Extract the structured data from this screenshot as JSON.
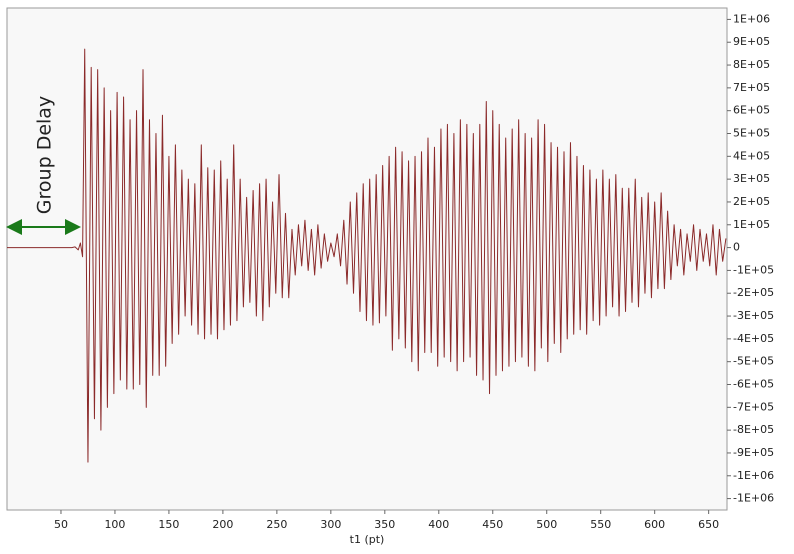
{
  "chart_data": {
    "type": "line",
    "x_label": "t1 (pt)",
    "annotation": "Group Delay",
    "xlim": [
      0,
      667
    ],
    "ylim": [
      -1150000,
      1050000
    ],
    "xticks": [
      50,
      100,
      150,
      200,
      250,
      300,
      350,
      400,
      450,
      500,
      550,
      600,
      650
    ],
    "yticks": [
      {
        "value": 1000000,
        "label": "1E+06"
      },
      {
        "value": 900000,
        "label": "9E+05"
      },
      {
        "value": 800000,
        "label": "8E+05"
      },
      {
        "value": 700000,
        "label": "7E+05"
      },
      {
        "value": 600000,
        "label": "6E+05"
      },
      {
        "value": 500000,
        "label": "5E+05"
      },
      {
        "value": 400000,
        "label": "4E+05"
      },
      {
        "value": 300000,
        "label": "3E+05"
      },
      {
        "value": 200000,
        "label": "2E+05"
      },
      {
        "value": 100000,
        "label": "1E+05"
      },
      0,
      {
        "value": -100000,
        "label": "-1E+05"
      },
      {
        "value": -200000,
        "label": "-2E+05"
      },
      {
        "value": -300000,
        "label": "-3E+05"
      },
      {
        "value": -400000,
        "label": "-4E+05"
      },
      {
        "value": -500000,
        "label": "-5E+05"
      },
      {
        "value": -600000,
        "label": "-6E+05"
      },
      {
        "value": -700000,
        "label": "-7E+05"
      },
      {
        "value": -800000,
        "label": "-8E+05"
      },
      {
        "value": -900000,
        "label": "-9E+05"
      },
      {
        "value": -1000000,
        "label": "-1E+06"
      },
      {
        "value": -1100000,
        "label": "-1E+06"
      }
    ],
    "series": [
      {
        "color": "#8b2a2a",
        "x": [
          0,
          60,
          63,
          66,
          68,
          70,
          72,
          75,
          78,
          81,
          84,
          87,
          90,
          93,
          96,
          99,
          102,
          105,
          108,
          111,
          114,
          117,
          120,
          123,
          126,
          129,
          132,
          135,
          138,
          141,
          144,
          147,
          150,
          153,
          156,
          159,
          162,
          165,
          168,
          171,
          174,
          177,
          180,
          183,
          186,
          189,
          192,
          195,
          198,
          201,
          204,
          207,
          210,
          213,
          216,
          219,
          222,
          225,
          228,
          231,
          234,
          237,
          240,
          243,
          246,
          249,
          252,
          255,
          258,
          261,
          264,
          267,
          270,
          273,
          276,
          279,
          282,
          285,
          288,
          291,
          294,
          297,
          300,
          303,
          306,
          309,
          312,
          315,
          318,
          321,
          324,
          327,
          330,
          333,
          336,
          339,
          342,
          345,
          348,
          351,
          354,
          357,
          360,
          363,
          366,
          369,
          372,
          375,
          378,
          381,
          384,
          387,
          390,
          393,
          396,
          399,
          402,
          405,
          408,
          411,
          414,
          417,
          420,
          423,
          426,
          429,
          432,
          435,
          438,
          441,
          444,
          447,
          450,
          453,
          456,
          459,
          462,
          465,
          468,
          471,
          474,
          477,
          480,
          483,
          486,
          489,
          492,
          495,
          498,
          501,
          504,
          507,
          510,
          513,
          516,
          519,
          522,
          525,
          528,
          531,
          534,
          537,
          540,
          543,
          546,
          549,
          552,
          555,
          558,
          561,
          564,
          567,
          570,
          573,
          576,
          579,
          582,
          585,
          588,
          591,
          594,
          597,
          600,
          603,
          606,
          609,
          612,
          615,
          618,
          621,
          624,
          627,
          630,
          633,
          636,
          639,
          642,
          645,
          648,
          651,
          654,
          657,
          660,
          663,
          666
        ],
        "values": [
          0,
          0,
          3000,
          -10000,
          20000,
          -40000,
          870000,
          -940000,
          790000,
          -750000,
          780000,
          -800000,
          700000,
          -700000,
          600000,
          -640000,
          680000,
          -580000,
          660000,
          -620000,
          560000,
          -620000,
          600000,
          -600000,
          780000,
          -700000,
          560000,
          -560000,
          500000,
          -560000,
          580000,
          -520000,
          400000,
          -420000,
          450000,
          -380000,
          340000,
          -300000,
          300000,
          -340000,
          280000,
          -380000,
          450000,
          -400000,
          350000,
          -380000,
          340000,
          -400000,
          380000,
          -360000,
          300000,
          -340000,
          450000,
          -320000,
          300000,
          -260000,
          220000,
          -240000,
          250000,
          -300000,
          280000,
          -320000,
          300000,
          -260000,
          200000,
          -200000,
          320000,
          -220000,
          150000,
          -220000,
          80000,
          -120000,
          100000,
          -80000,
          120000,
          -100000,
          80000,
          -120000,
          100000,
          -90000,
          60000,
          -60000,
          20000,
          -40000,
          60000,
          -80000,
          120000,
          -160000,
          200000,
          -200000,
          240000,
          -280000,
          280000,
          -320000,
          300000,
          -340000,
          320000,
          -330000,
          360000,
          -300000,
          400000,
          -450000,
          440000,
          -400000,
          420000,
          -440000,
          380000,
          -500000,
          400000,
          -540000,
          420000,
          -460000,
          480000,
          -460000,
          440000,
          -520000,
          520000,
          -480000,
          540000,
          -500000,
          500000,
          -540000,
          560000,
          -500000,
          540000,
          -480000,
          500000,
          -560000,
          540000,
          -580000,
          640000,
          -640000,
          600000,
          -560000,
          540000,
          -540000,
          480000,
          -520000,
          520000,
          -500000,
          560000,
          -480000,
          500000,
          -520000,
          480000,
          -540000,
          560000,
          -440000,
          540000,
          -500000,
          460000,
          -420000,
          440000,
          -460000,
          420000,
          -400000,
          460000,
          -380000,
          400000,
          -360000,
          360000,
          -380000,
          340000,
          -320000,
          300000,
          -340000,
          340000,
          -300000,
          300000,
          -260000,
          320000,
          -300000,
          260000,
          -280000,
          260000,
          -240000,
          300000,
          -260000,
          220000,
          -200000,
          240000,
          -220000,
          200000,
          -180000,
          240000,
          -180000,
          160000,
          -140000,
          100000,
          -80000,
          80000,
          -120000,
          60000,
          -60000,
          100000,
          -100000,
          80000,
          -60000,
          60000,
          -80000,
          100000,
          -120000,
          80000,
          -60000,
          40000
        ]
      }
    ]
  }
}
